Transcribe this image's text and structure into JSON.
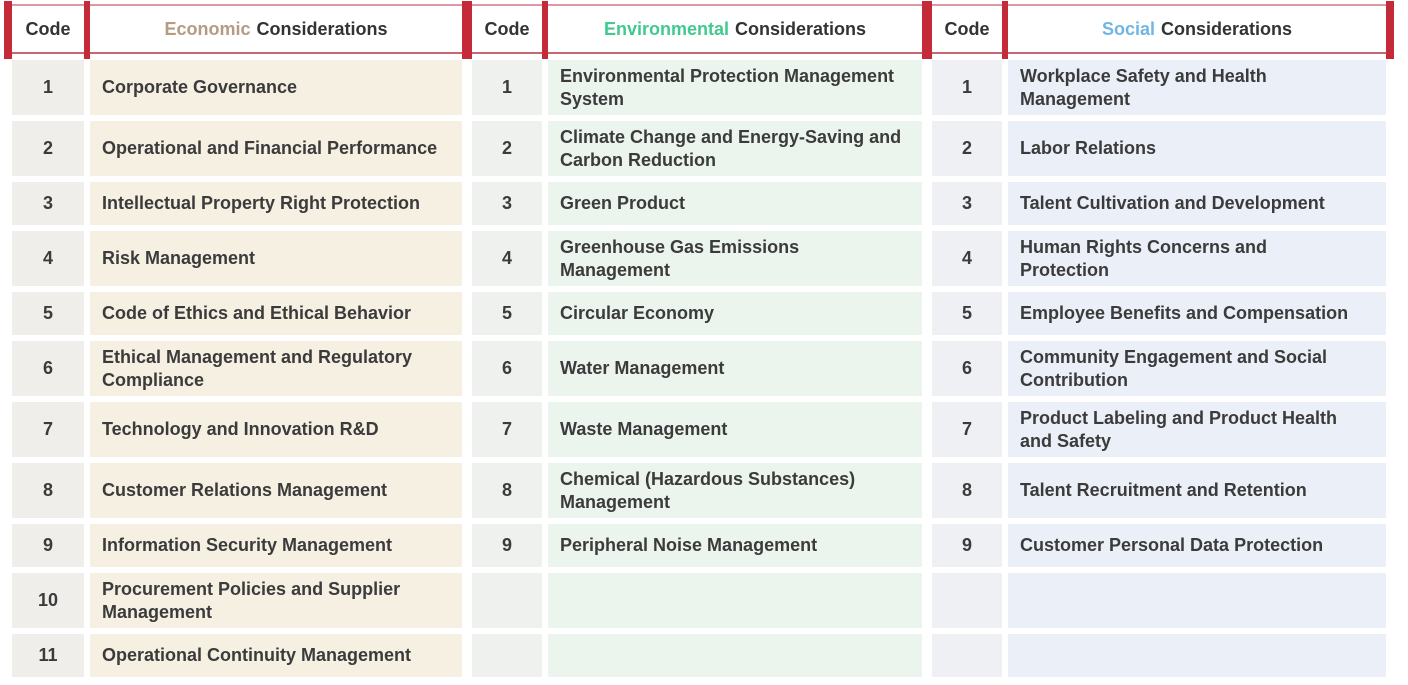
{
  "table": {
    "colors": {
      "divider_red": "#c42a38",
      "header_line_top": "#dd99a0",
      "header_line_bottom": "#c76771",
      "header_text": "#333333",
      "body_text": "#3b3b3b"
    },
    "sections": [
      {
        "id": "economic",
        "code_header": "Code",
        "title_highlight": "Economic",
        "title_rest": "Considerations",
        "colors": {
          "accent": "#b59b83",
          "code_bg": "#efeeeb",
          "label_bg": "#f6f0e3"
        },
        "rows": [
          {
            "code": "1",
            "label": "Corporate Governance"
          },
          {
            "code": "2",
            "label": "Operational and Financial Performance"
          },
          {
            "code": "3",
            "label": "Intellectual Property Right Protection"
          },
          {
            "code": "4",
            "label": "Risk Management"
          },
          {
            "code": "5",
            "label": "Code of Ethics and Ethical Behavior"
          },
          {
            "code": "6",
            "label": "Ethical Management and Regulatory Compliance"
          },
          {
            "code": "7",
            "label": "Technology and Innovation R&D"
          },
          {
            "code": "8",
            "label": "Customer Relations Management"
          },
          {
            "code": "9",
            "label": "Information Security Management"
          },
          {
            "code": "10",
            "label": "Procurement Policies and Supplier Management"
          },
          {
            "code": "11",
            "label": "Operational Continuity Management"
          }
        ]
      },
      {
        "id": "environmental",
        "code_header": "Code",
        "title_highlight": "Environmental",
        "title_rest": "Considerations",
        "colors": {
          "accent": "#41c98f",
          "code_bg": "#eff1ee",
          "label_bg": "#ecf4ee"
        },
        "rows": [
          {
            "code": "1",
            "label": "Environmental Protection Management System"
          },
          {
            "code": "2",
            "label": "Climate Change and Energy-Saving and Carbon Reduction"
          },
          {
            "code": "3",
            "label": "Green Product"
          },
          {
            "code": "4",
            "label": "Greenhouse Gas Emissions Management"
          },
          {
            "code": "5",
            "label": "Circular Economy"
          },
          {
            "code": "6",
            "label": "Water Management"
          },
          {
            "code": "7",
            "label": "Waste Management"
          },
          {
            "code": "8",
            "label": "Chemical (Hazardous Substances) Management"
          },
          {
            "code": "9",
            "label": "Peripheral Noise Management"
          },
          {
            "code": "",
            "label": ""
          },
          {
            "code": "",
            "label": ""
          }
        ]
      },
      {
        "id": "social",
        "code_header": "Code",
        "title_highlight": "Social",
        "title_rest": "Considerations",
        "colors": {
          "accent": "#6fb5e5",
          "code_bg": "#eef0f4",
          "label_bg": "#eaeff8"
        },
        "rows": [
          {
            "code": "1",
            "label": "Workplace Safety and Health Management"
          },
          {
            "code": "2",
            "label": "Labor Relations"
          },
          {
            "code": "3",
            "label": "Talent Cultivation and Development"
          },
          {
            "code": "4",
            "label": "Human Rights Concerns and Protection"
          },
          {
            "code": "5",
            "label": "Employee Benefits and Compensation"
          },
          {
            "code": "6",
            "label": "Community Engagement and Social Contribution"
          },
          {
            "code": "7",
            "label": "Product Labeling and Product Health and Safety"
          },
          {
            "code": "8",
            "label": "Talent Recruitment and Retention"
          },
          {
            "code": "9",
            "label": "Customer Personal Data Protection"
          },
          {
            "code": "",
            "label": ""
          },
          {
            "code": "",
            "label": ""
          }
        ]
      }
    ]
  }
}
